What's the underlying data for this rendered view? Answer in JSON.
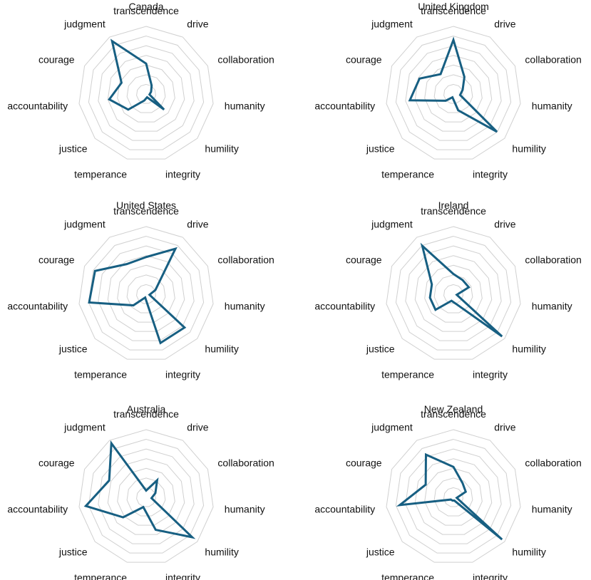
{
  "colors": {
    "series": "#175f82",
    "grid": "#d0d0d0"
  },
  "axes": [
    "transcendence",
    "drive",
    "collaboration",
    "humanity",
    "humility",
    "integrity",
    "temperance",
    "justice",
    "accountability",
    "courage",
    "judgment"
  ],
  "chart_data": [
    {
      "type": "radar",
      "title": "Canada",
      "categories": [
        "transcendence",
        "drive",
        "collaboration",
        "humanity",
        "humility",
        "integrity",
        "temperance",
        "justice",
        "accountability",
        "courage",
        "judgment"
      ],
      "values": [
        0.45,
        0.15,
        0.08,
        0.05,
        0.35,
        0.05,
        0.1,
        0.35,
        0.55,
        0.4,
        0.93
      ],
      "rlim": [
        0,
        1
      ]
    },
    {
      "type": "radar",
      "title": "United Kingdom",
      "categories": [
        "transcendence",
        "drive",
        "collaboration",
        "humanity",
        "humility",
        "integrity",
        "temperance",
        "justice",
        "accountability",
        "courage",
        "judgment"
      ],
      "values": [
        0.8,
        0.3,
        0.15,
        0.1,
        0.85,
        0.25,
        0.05,
        0.15,
        0.65,
        0.55,
        0.35
      ],
      "rlim": [
        0,
        1
      ]
    },
    {
      "type": "radar",
      "title": "United States",
      "categories": [
        "transcendence",
        "drive",
        "collaboration",
        "humanity",
        "humility",
        "integrity",
        "temperance",
        "justice",
        "accountability",
        "courage",
        "judgment"
      ],
      "values": [
        0.55,
        0.8,
        0.15,
        0.05,
        0.75,
        0.75,
        0.05,
        0.25,
        0.85,
        0.83,
        0.53
      ],
      "rlim": [
        0,
        1
      ]
    },
    {
      "type": "radar",
      "title": "Ireland",
      "categories": [
        "transcendence",
        "drive",
        "collaboration",
        "humanity",
        "humility",
        "integrity",
        "temperance",
        "justice",
        "accountability",
        "courage",
        "judgment"
      ],
      "values": [
        0.3,
        0.25,
        0.25,
        0.05,
        0.95,
        0.15,
        0.1,
        0.35,
        0.35,
        0.35,
        0.85
      ],
      "rlim": [
        0,
        1
      ]
    },
    {
      "type": "radar",
      "title": "Australia",
      "categories": [
        "transcendence",
        "drive",
        "collaboration",
        "humanity",
        "humility",
        "integrity",
        "temperance",
        "justice",
        "accountability",
        "courage",
        "judgment"
      ],
      "values": [
        0.1,
        0.3,
        0.15,
        0.08,
        0.9,
        0.5,
        0.15,
        0.45,
        0.9,
        0.6,
        0.95
      ],
      "rlim": [
        0,
        1
      ]
    },
    {
      "type": "radar",
      "title": "New Zealand",
      "categories": [
        "transcendence",
        "drive",
        "collaboration",
        "humanity",
        "humility",
        "integrity",
        "temperance",
        "justice",
        "accountability",
        "courage",
        "judgment"
      ],
      "values": [
        0.45,
        0.25,
        0.2,
        0.05,
        0.95,
        0.05,
        0.05,
        0.05,
        0.8,
        0.45,
        0.75
      ],
      "rlim": [
        0,
        1
      ]
    }
  ]
}
